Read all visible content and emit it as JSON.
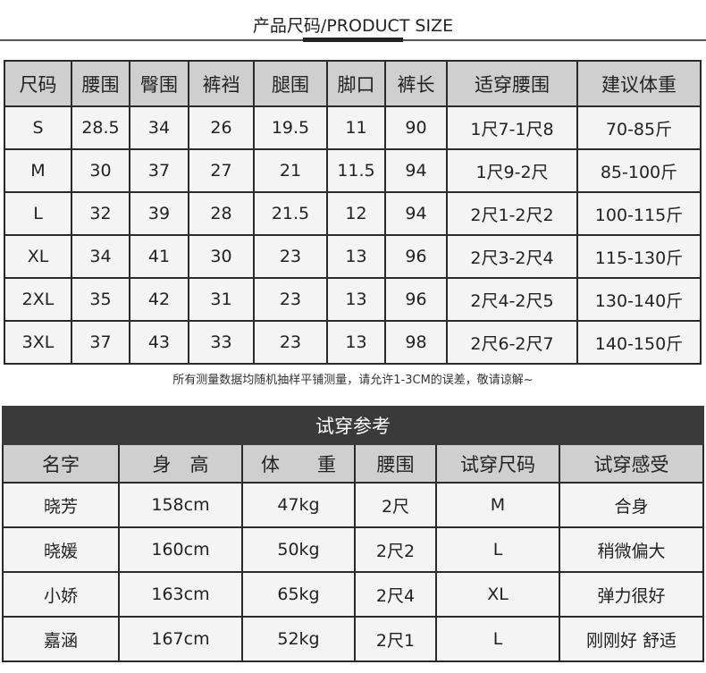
{
  "title": "产品尺码/PRODUCT SIZE",
  "size_table": {
    "headers": [
      "尺码",
      "腰围",
      "臀围",
      "裤裆",
      "腿围",
      "脚口",
      "裤长",
      "适穿腰围",
      "建议体重"
    ],
    "rows": [
      [
        "S",
        "28.5",
        "34",
        "26",
        "19.5",
        "11",
        "90",
        "1尺7-1尺8",
        "70-85斤"
      ],
      [
        "M",
        "30",
        "37",
        "27",
        "21",
        "11.5",
        "94",
        "1尺9-2尺",
        "85-100斤"
      ],
      [
        "L",
        "32",
        "39",
        "28",
        "21.5",
        "12",
        "94",
        "2尺1-2尺2",
        "100-115斤"
      ],
      [
        "XL",
        "34",
        "41",
        "30",
        "23",
        "13",
        "96",
        "2尺3-2尺4",
        "115-130斤"
      ],
      [
        "2XL",
        "35",
        "42",
        "31",
        "23",
        "13",
        "96",
        "2尺4-2尺5",
        "130-140斤"
      ],
      [
        "3XL",
        "37",
        "43",
        "33",
        "23",
        "13",
        "98",
        "2尺6-2尺7",
        "140-150斤"
      ]
    ]
  },
  "note": "所有测量数据均随机抽样平铺测量，请允许1-3CM的误差，敬请谅解~",
  "fit_table": {
    "title": "试穿参考",
    "headers": [
      "名字",
      "身　高",
      "体　　重",
      "腰围",
      "试穿尺码",
      "试穿感受"
    ],
    "rows": [
      [
        "晓芳",
        "158cm",
        "47kg",
        "2尺",
        "M",
        "合身"
      ],
      [
        "晓媛",
        "160cm",
        "50kg",
        "2尺2",
        "L",
        "稍微偏大"
      ],
      [
        "小娇",
        "163cm",
        "65kg",
        "2尺4",
        "XL",
        "弹力很好"
      ],
      [
        "嘉涵",
        "167cm",
        "52kg",
        "2尺1",
        "L",
        "刚刚好 舒适"
      ]
    ]
  }
}
